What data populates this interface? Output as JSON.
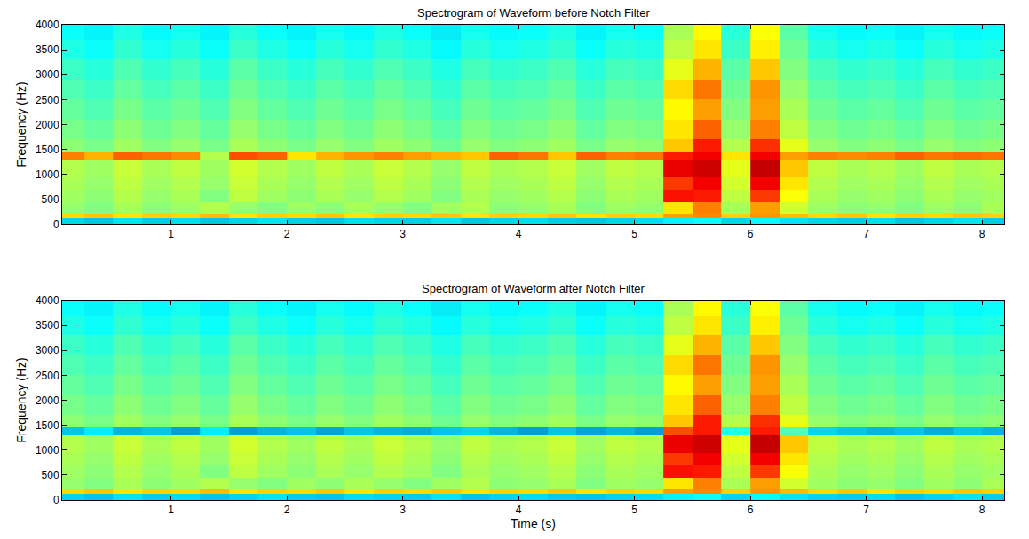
{
  "chart_data": [
    {
      "type": "heatmap",
      "title": "Spectrogram of Waveform before Notch Filter",
      "ylabel": "Frequency (Hz)",
      "color": "Jet",
      "xlim": [
        0.06,
        8.19
      ],
      "ylim": [
        0,
        4000
      ],
      "xticks": [
        1,
        2,
        3,
        4,
        5,
        6,
        7,
        8
      ],
      "yticks": [
        0,
        500,
        1000,
        1500,
        2000,
        2500,
        3000,
        3500,
        4000
      ],
      "zlim": [
        0,
        10
      ],
      "x_edges": [
        0,
        0.25,
        0.5,
        0.75,
        1,
        1.25,
        1.5,
        1.75,
        2,
        2.25,
        2.5,
        2.75,
        3,
        3.25,
        3.5,
        3.75,
        4,
        4.25,
        4.5,
        4.75,
        5,
        5.25,
        5.5,
        5.75,
        6,
        6.25,
        6.5,
        6.75,
        7,
        7.25,
        7.5,
        7.75,
        8,
        8.25
      ],
      "y_edges": [
        0,
        120,
        220,
        450,
        700,
        950,
        1300,
        1450,
        1700,
        2100,
        2500,
        2900,
        3300,
        3700,
        4000
      ],
      "cells": [
        [
          3.2,
          3,
          3.4,
          3.1,
          3.3,
          3,
          3.2,
          3.4,
          3.1,
          3,
          3.3,
          3.2,
          3.1,
          3.4,
          3,
          3.2,
          3.3,
          3.1,
          3,
          3.2,
          3.3,
          3.6,
          3.8,
          3.2,
          3.7,
          3.4,
          3.2,
          3.1,
          3.3,
          3,
          3.2,
          3.4,
          3.1
        ],
        [
          6.6,
          6.8,
          6.5,
          6.7,
          6.6,
          6.9,
          6.5,
          6.7,
          6.6,
          6.8,
          6.5,
          6.7,
          6.6,
          6.8,
          6.5,
          6.7,
          6.6,
          6.8,
          6.5,
          6.7,
          6.6,
          7.2,
          7.4,
          6.7,
          7.3,
          6.9,
          6.6,
          6.8,
          6.5,
          6.7,
          6.6,
          6.8,
          6.7
        ],
        [
          5.2,
          5,
          5.4,
          5.1,
          5.3,
          5.5,
          5.2,
          5,
          5.3,
          5.1,
          5.4,
          5.2,
          5,
          5.3,
          5.5,
          5.1,
          5.2,
          5.4,
          5,
          5.3,
          5.2,
          6.5,
          7.5,
          5.4,
          7.2,
          5.8,
          5.3,
          5.1,
          5.2,
          5,
          5.3,
          5.1,
          5.4
        ],
        [
          5.3,
          5.1,
          5.5,
          5.2,
          5.4,
          5,
          5.6,
          5.3,
          5.1,
          5.4,
          5.2,
          5.5,
          5.3,
          5,
          5.4,
          5.2,
          5.3,
          5.5,
          5.1,
          5.4,
          5.3,
          8.6,
          8.5,
          5.6,
          8.2,
          6.2,
          5.4,
          5.2,
          5.3,
          5.1,
          5.4,
          5.2,
          5.3
        ],
        [
          5.4,
          5.2,
          5.6,
          5.3,
          5.5,
          5.2,
          5.7,
          5.4,
          5.2,
          5.5,
          5.3,
          5.6,
          5.4,
          5.1,
          5.5,
          5.3,
          5.4,
          5.6,
          5.2,
          5.5,
          5.4,
          8.2,
          8.8,
          5.8,
          8.8,
          6.5,
          5.5,
          5.3,
          5.4,
          5.2,
          5.5,
          5.3,
          5.4
        ],
        [
          5.5,
          5.3,
          5.7,
          5.4,
          5.6,
          5.3,
          5.8,
          5.5,
          5.3,
          5.6,
          5.4,
          5.7,
          5.5,
          5.2,
          5.6,
          5.4,
          5.5,
          5.7,
          5.3,
          5.6,
          5.5,
          8.9,
          9.2,
          6,
          9.3,
          6.8,
          5.6,
          5.4,
          5.5,
          5.3,
          5.6,
          5.4,
          5.5
        ],
        [
          7.5,
          7,
          7.8,
          7.6,
          7.4,
          5.5,
          8,
          7.8,
          6.5,
          7,
          7.3,
          7.5,
          7.2,
          7,
          6.8,
          7.8,
          7.6,
          6.8,
          7.8,
          7.5,
          7.6,
          8.5,
          8.8,
          6.5,
          8.8,
          7.2,
          7.5,
          7.4,
          7.5,
          7.8,
          7.6,
          7.7,
          7.6
        ],
        [
          5.1,
          4.9,
          5.3,
          5,
          5.2,
          4.9,
          5.4,
          5.1,
          4.9,
          5.2,
          5,
          5.3,
          5.1,
          4.8,
          5.2,
          5,
          5.1,
          5.3,
          4.9,
          5.2,
          5.1,
          6.8,
          8.5,
          5.5,
          8.3,
          6,
          5.2,
          5,
          5.1,
          4.9,
          5.2,
          5,
          5.1
        ],
        [
          4.9,
          4.7,
          5.1,
          4.8,
          5,
          4.7,
          5.2,
          4.9,
          4.7,
          5,
          4.8,
          5.1,
          4.9,
          4.6,
          5,
          4.8,
          4.9,
          5.1,
          4.7,
          5,
          4.9,
          6.5,
          7.8,
          5.2,
          7.5,
          5.6,
          5,
          4.8,
          4.9,
          4.7,
          5,
          4.8,
          4.9
        ],
        [
          4.7,
          4.5,
          4.9,
          4.6,
          4.8,
          4.5,
          5,
          4.7,
          4.5,
          4.8,
          4.6,
          4.9,
          4.7,
          4.4,
          4.8,
          4.6,
          4.7,
          4.9,
          4.5,
          4.8,
          4.7,
          6.3,
          7.2,
          5,
          7.2,
          5.4,
          4.8,
          4.6,
          4.7,
          4.5,
          4.8,
          4.6,
          4.7
        ],
        [
          4.5,
          4.3,
          4.7,
          4.4,
          4.6,
          4.3,
          4.8,
          4.5,
          4.3,
          4.6,
          4.4,
          4.7,
          4.5,
          4.2,
          4.6,
          4.4,
          4.5,
          4.7,
          4.3,
          4.6,
          4.5,
          6.6,
          7.6,
          4.8,
          7.3,
          5.2,
          4.6,
          4.4,
          4.5,
          4.3,
          4.6,
          4.4,
          4.5
        ],
        [
          4.3,
          4.1,
          4.5,
          4.2,
          4.4,
          4.1,
          4.6,
          4.3,
          4.1,
          4.4,
          4.2,
          4.5,
          4.3,
          4,
          4.4,
          4.2,
          4.3,
          4.5,
          4.1,
          4.4,
          4.3,
          6,
          7,
          4.6,
          6.8,
          5,
          4.4,
          4.2,
          4.3,
          4.1,
          4.4,
          4.2,
          4.3
        ],
        [
          4,
          3.8,
          4.2,
          3.9,
          4.1,
          3.8,
          4.3,
          4,
          3.8,
          4.1,
          3.9,
          4.2,
          4,
          3.7,
          4.1,
          3.9,
          4,
          4.2,
          3.8,
          4.1,
          4,
          5.6,
          6.5,
          4.3,
          6.4,
          4.8,
          4.1,
          3.9,
          4,
          3.8,
          4.1,
          3.9,
          4
        ],
        [
          3.8,
          3.6,
          4,
          3.7,
          3.9,
          3.6,
          4.1,
          3.8,
          3.6,
          3.9,
          3.7,
          4,
          3.8,
          3.5,
          3.9,
          3.7,
          3.8,
          4,
          3.6,
          3.9,
          3.8,
          5.4,
          6.3,
          4.1,
          6.2,
          4.6,
          3.9,
          3.7,
          3.8,
          3.6,
          3.9,
          3.7,
          3.8
        ]
      ]
    },
    {
      "type": "heatmap",
      "title": "Spectrogram of Waveform after Notch Filter",
      "xlabel": "Time (s)",
      "ylabel": "Frequency (Hz)",
      "color": "Jet",
      "xlim": [
        0.06,
        8.19
      ],
      "ylim": [
        0,
        4000
      ],
      "xticks": [
        1,
        2,
        3,
        4,
        5,
        6,
        7,
        8
      ],
      "yticks": [
        0,
        500,
        1000,
        1500,
        2000,
        2500,
        3000,
        3500,
        4000
      ],
      "zlim": [
        0,
        10
      ],
      "x_edges": [
        0,
        0.25,
        0.5,
        0.75,
        1,
        1.25,
        1.5,
        1.75,
        2,
        2.25,
        2.5,
        2.75,
        3,
        3.25,
        3.5,
        3.75,
        4,
        4.25,
        4.5,
        4.75,
        5,
        5.25,
        5.5,
        5.75,
        6,
        6.25,
        6.5,
        6.75,
        7,
        7.25,
        7.5,
        7.75,
        8,
        8.25
      ],
      "y_edges": [
        0,
        120,
        220,
        450,
        700,
        950,
        1300,
        1450,
        1700,
        2100,
        2500,
        2900,
        3300,
        3700,
        4000
      ],
      "cells": [
        [
          3.2,
          3,
          3.4,
          3.1,
          3.3,
          3,
          3.2,
          3.4,
          3.1,
          3,
          3.3,
          3.2,
          3.1,
          3.4,
          3,
          3.2,
          3.3,
          3.1,
          3,
          3.2,
          3.3,
          3.6,
          3.8,
          3.2,
          3.7,
          3.4,
          3.2,
          3.1,
          3.3,
          3,
          3.2,
          3.4,
          3.1
        ],
        [
          6.6,
          6.8,
          6.5,
          6.7,
          6.6,
          6.9,
          6.5,
          6.7,
          6.6,
          6.8,
          6.5,
          6.7,
          6.6,
          6.8,
          6.5,
          6.7,
          6.6,
          6.8,
          6.5,
          6.7,
          6.6,
          7.2,
          7.4,
          6.7,
          7.3,
          6.9,
          6.6,
          6.8,
          6.5,
          6.7,
          6.6,
          6.8,
          6.7
        ],
        [
          5.2,
          5,
          5.4,
          5.1,
          5.3,
          5.5,
          5.2,
          5,
          5.3,
          5.1,
          5.4,
          5.2,
          5,
          5.3,
          5.5,
          5.1,
          5.2,
          5.4,
          5,
          5.3,
          5.2,
          6.5,
          7.5,
          5.4,
          7.2,
          5.8,
          5.3,
          5.1,
          5.2,
          5,
          5.3,
          5.1,
          5.4
        ],
        [
          5.3,
          5.1,
          5.5,
          5.2,
          5.4,
          5,
          5.6,
          5.3,
          5.1,
          5.4,
          5.2,
          5.5,
          5.3,
          5,
          5.4,
          5.2,
          5.3,
          5.5,
          5.1,
          5.4,
          5.3,
          8.6,
          8.5,
          5.6,
          8.2,
          6.2,
          5.4,
          5.2,
          5.3,
          5.1,
          5.4,
          5.2,
          5.3
        ],
        [
          5.4,
          5.2,
          5.6,
          5.3,
          5.5,
          5.2,
          5.7,
          5.4,
          5.2,
          5.5,
          5.3,
          5.6,
          5.4,
          5.1,
          5.5,
          5.3,
          5.4,
          5.6,
          5.2,
          5.5,
          5.4,
          8.2,
          8.8,
          5.8,
          8.8,
          6.5,
          5.5,
          5.3,
          5.4,
          5.2,
          5.5,
          5.3,
          5.4
        ],
        [
          5.5,
          5.3,
          5.7,
          5.4,
          5.6,
          5.3,
          5.8,
          5.5,
          5.3,
          5.6,
          5.4,
          5.7,
          5.5,
          5.2,
          5.6,
          5.4,
          5.5,
          5.7,
          5.3,
          5.6,
          5.5,
          8.9,
          9.2,
          6,
          9.3,
          6.8,
          5.6,
          5.4,
          5.5,
          5.3,
          5.6,
          5.4,
          5.5
        ],
        [
          3,
          3.5,
          2.8,
          3,
          2.5,
          3.5,
          2.5,
          2.8,
          3,
          2.6,
          3,
          2.8,
          2.7,
          3,
          3.2,
          2.8,
          2.5,
          3,
          2.6,
          2.8,
          2.5,
          8,
          8.5,
          4,
          8.5,
          4.5,
          3.2,
          3,
          2.8,
          3,
          2.7,
          3,
          2.8
        ],
        [
          5.1,
          4.9,
          5.3,
          5,
          5.2,
          4.9,
          5.4,
          5.1,
          4.9,
          5.2,
          5,
          5.3,
          5.1,
          4.8,
          5.2,
          5,
          5.1,
          5.3,
          4.9,
          5.2,
          5.1,
          6.8,
          8.5,
          5.5,
          8.3,
          6,
          5.2,
          5,
          5.1,
          4.9,
          5.2,
          5,
          5.1
        ],
        [
          4.9,
          4.7,
          5.1,
          4.8,
          5,
          4.7,
          5.2,
          4.9,
          4.7,
          5,
          4.8,
          5.1,
          4.9,
          4.6,
          5,
          4.8,
          4.9,
          5.1,
          4.7,
          5,
          4.9,
          6.5,
          7.8,
          5.2,
          7.5,
          5.6,
          5,
          4.8,
          4.9,
          4.7,
          5,
          4.8,
          4.9
        ],
        [
          4.7,
          4.5,
          4.9,
          4.6,
          4.8,
          4.5,
          5,
          4.7,
          4.5,
          4.8,
          4.6,
          4.9,
          4.7,
          4.4,
          4.8,
          4.6,
          4.7,
          4.9,
          4.5,
          4.8,
          4.7,
          6.3,
          7.2,
          5,
          7.2,
          5.4,
          4.8,
          4.6,
          4.7,
          4.5,
          4.8,
          4.6,
          4.7
        ],
        [
          4.5,
          4.3,
          4.7,
          4.4,
          4.6,
          4.3,
          4.8,
          4.5,
          4.3,
          4.6,
          4.4,
          4.7,
          4.5,
          4.2,
          4.6,
          4.4,
          4.5,
          4.7,
          4.3,
          4.6,
          4.5,
          6.6,
          7.6,
          4.8,
          7.3,
          5.2,
          4.6,
          4.4,
          4.5,
          4.3,
          4.6,
          4.4,
          4.5
        ],
        [
          4.3,
          4.1,
          4.5,
          4.2,
          4.4,
          4.1,
          4.6,
          4.3,
          4.1,
          4.4,
          4.2,
          4.5,
          4.3,
          4,
          4.4,
          4.2,
          4.3,
          4.5,
          4.1,
          4.4,
          4.3,
          6,
          7,
          4.6,
          6.8,
          5,
          4.4,
          4.2,
          4.3,
          4.1,
          4.4,
          4.2,
          4.3
        ],
        [
          4,
          3.8,
          4.2,
          3.9,
          4.1,
          3.8,
          4.3,
          4,
          3.8,
          4.1,
          3.9,
          4.2,
          4,
          3.7,
          4.1,
          3.9,
          4,
          4.2,
          3.8,
          4.1,
          4,
          5.6,
          6.5,
          4.3,
          6.4,
          4.8,
          4.1,
          3.9,
          4,
          3.8,
          4.1,
          3.9,
          4
        ],
        [
          3.8,
          3.6,
          4,
          3.7,
          3.9,
          3.6,
          4.1,
          3.8,
          3.6,
          3.9,
          3.7,
          4,
          3.8,
          3.5,
          3.9,
          3.7,
          3.8,
          4,
          3.6,
          3.9,
          3.8,
          5.4,
          6.3,
          4.1,
          6.2,
          4.6,
          3.9,
          3.7,
          3.8,
          3.6,
          3.9,
          3.7,
          3.8
        ]
      ]
    }
  ]
}
